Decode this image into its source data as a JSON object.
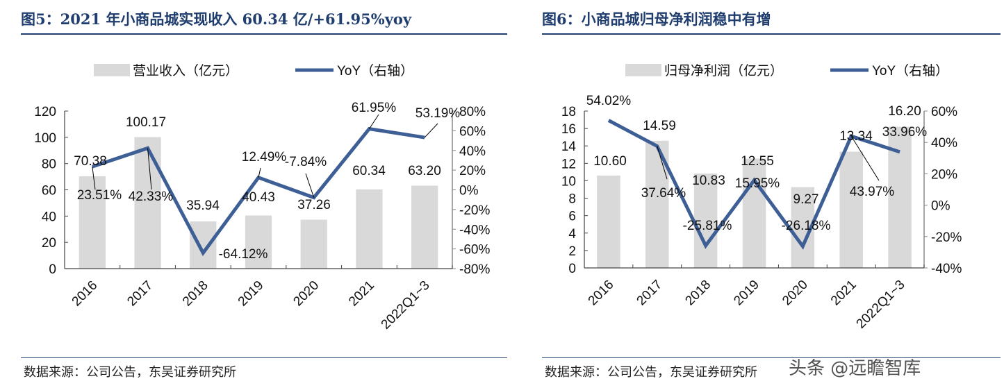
{
  "charts": [
    {
      "title": "图5：2021 年小商品城实现收入 60.34 亿/+61.95%yoy",
      "source": "数据来源：公司公告，东吴证券研究所",
      "legend": {
        "bar": "营业收入（亿元）",
        "line": "YoY（右轴）"
      }
    },
    {
      "title": "图6：小商品城归母净利润稳中有增",
      "source": "数据来源：公司公告，东吴证券研究所",
      "legend": {
        "bar": "归母净利润（亿元）",
        "line": "YoY（右轴）"
      }
    }
  ],
  "watermark": "头条 @远瞻智库",
  "colors": {
    "bar": "#d9d9d9",
    "line": "#3d5f96",
    "title": "#1f3d6e"
  },
  "chart_data": [
    {
      "type": "bar+line",
      "categories": [
        "2016",
        "2017",
        "2018",
        "2019",
        "2020",
        "2021",
        "2022Q1~3"
      ],
      "series": [
        {
          "name": "营业收入（亿元）",
          "type": "bar",
          "axis": "left",
          "values": [
            70.38,
            100.17,
            35.94,
            40.43,
            37.26,
            60.34,
            63.2
          ],
          "labels": [
            "70.38",
            "100.17",
            "35.94",
            "40.43",
            "37.26",
            "60.34",
            "63.20"
          ]
        },
        {
          "name": "YoY（右轴）",
          "type": "line",
          "axis": "right",
          "values": [
            23.51,
            42.33,
            -64.12,
            12.49,
            -7.84,
            61.95,
            53.19
          ],
          "labels": [
            "23.51%",
            "42.33%",
            "-64.12%",
            "12.49%",
            "-7.84%",
            "61.95%",
            "53.19%"
          ]
        }
      ],
      "ylim": [
        0,
        120
      ],
      "yticks": [
        "0",
        "20",
        "40",
        "60",
        "80",
        "100",
        "120"
      ],
      "y2lim": [
        -80,
        80
      ],
      "y2ticks": [
        "-80%",
        "-60%",
        "-40%",
        "-20%",
        "0%",
        "20%",
        "40%",
        "60%",
        "80%"
      ],
      "legend_position": "top",
      "grid": false
    },
    {
      "type": "bar+line",
      "categories": [
        "2016",
        "2017",
        "2018",
        "2019",
        "2020",
        "2021",
        "2022Q1~3"
      ],
      "series": [
        {
          "name": "归母净利润（亿元）",
          "type": "bar",
          "axis": "left",
          "values": [
            10.6,
            14.59,
            10.83,
            12.55,
            9.27,
            13.34,
            16.2
          ],
          "labels": [
            "10.60",
            "14.59",
            "10.83",
            "12.55",
            "9.27",
            "13.34",
            "16.20"
          ]
        },
        {
          "name": "YoY（右轴）",
          "type": "line",
          "axis": "right",
          "values": [
            54.02,
            37.64,
            -25.81,
            15.95,
            -26.18,
            43.97,
            33.96
          ],
          "labels": [
            "54.02%",
            "37.64%",
            "-25.81%",
            "15.95%",
            "-26.18%",
            "43.97%",
            "33.96%"
          ]
        }
      ],
      "ylim": [
        0,
        18
      ],
      "yticks": [
        "0",
        "2",
        "4",
        "6",
        "8",
        "10",
        "12",
        "14",
        "16",
        "18"
      ],
      "y2lim": [
        -40,
        60
      ],
      "y2ticks": [
        "-40%",
        "-20%",
        "0%",
        "20%",
        "40%",
        "60%"
      ],
      "legend_position": "top",
      "grid": false
    }
  ]
}
